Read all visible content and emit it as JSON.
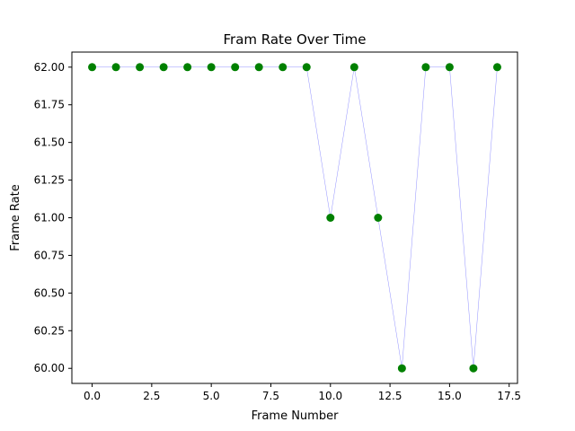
{
  "chart_data": {
    "type": "line",
    "title": "Fram Rate Over Time",
    "xlabel": "Frame Number",
    "ylabel": "Frame Rate",
    "x": [
      0,
      1,
      2,
      3,
      4,
      5,
      6,
      7,
      8,
      9,
      10,
      11,
      12,
      13,
      14,
      15,
      16,
      17
    ],
    "series": [
      {
        "values": [
          62,
          62,
          62,
          62,
          62,
          62,
          62,
          62,
          62,
          62,
          61,
          62,
          61,
          60,
          62,
          62,
          60,
          62
        ],
        "line_color": "#0000ff",
        "marker_color": "#008000"
      }
    ],
    "xlim": [
      -0.85,
      17.85
    ],
    "ylim": [
      59.9,
      62.1
    ],
    "xticks": [
      0.0,
      2.5,
      5.0,
      7.5,
      10.0,
      12.5,
      15.0,
      17.5
    ],
    "xtick_labels": [
      "0.0",
      "2.5",
      "5.0",
      "7.5",
      "10.0",
      "12.5",
      "15.0",
      "17.5"
    ],
    "yticks": [
      60.0,
      60.25,
      60.5,
      60.75,
      61.0,
      61.25,
      61.5,
      61.75,
      62.0
    ],
    "ytick_labels": [
      "60.00",
      "60.25",
      "60.50",
      "60.75",
      "61.00",
      "61.25",
      "61.50",
      "61.75",
      "62.00"
    ],
    "grid": false,
    "legend": false
  }
}
